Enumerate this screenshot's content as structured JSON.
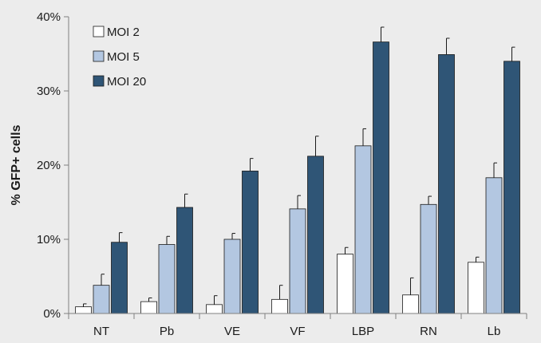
{
  "chart_data": {
    "type": "bar",
    "title": "",
    "xlabel": "",
    "ylabel": "% GFP+ cells",
    "ylim": [
      0,
      40
    ],
    "y_ticks": [
      0,
      10,
      20,
      30,
      40
    ],
    "y_tick_suffix": "%",
    "grid": false,
    "legend_position": "top-left",
    "categories": [
      "NT",
      "Pb",
      "VE",
      "VF",
      "LBP",
      "RN",
      "Lb"
    ],
    "series": [
      {
        "name": "MOI 2",
        "color": "#ffffff",
        "values": [
          0.9,
          1.6,
          1.2,
          1.9,
          8.0,
          2.5,
          6.9
        ],
        "errors": [
          0.4,
          0.5,
          1.2,
          1.9,
          0.9,
          2.3,
          0.7
        ]
      },
      {
        "name": "MOI 5",
        "color": "#b3c7e1",
        "values": [
          3.8,
          9.3,
          10.0,
          14.1,
          22.6,
          14.7,
          18.3
        ],
        "errors": [
          1.5,
          1.1,
          0.8,
          1.8,
          2.3,
          1.1,
          2.0
        ]
      },
      {
        "name": "MOI 20",
        "color": "#2f5576",
        "values": [
          9.6,
          14.3,
          19.2,
          21.2,
          36.6,
          34.9,
          34.0
        ],
        "errors": [
          1.3,
          1.8,
          1.7,
          2.7,
          2.0,
          2.2,
          1.9
        ]
      }
    ]
  }
}
